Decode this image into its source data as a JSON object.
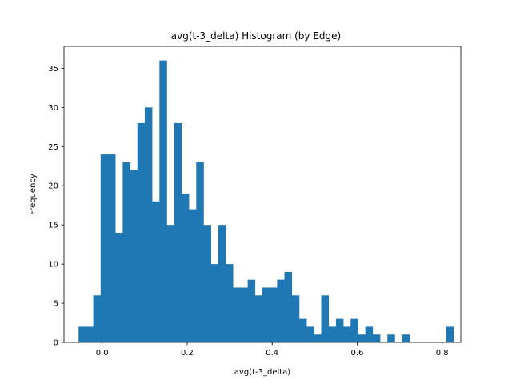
{
  "chart_data": {
    "type": "bar",
    "title": "avg(t-3_delta) Histogram (by Edge)",
    "xlabel": "avg(t-3_delta)",
    "ylabel": "Frequency",
    "xlim": [
      -0.0898,
      0.8438
    ],
    "ylim": [
      0,
      37.8
    ],
    "xticks": [
      "0.0",
      "0.2",
      "0.4",
      "0.6",
      "0.8"
    ],
    "xtick_values": [
      0.0,
      0.2,
      0.4,
      0.6,
      0.8
    ],
    "yticks": [
      "0",
      "5",
      "10",
      "15",
      "20",
      "25",
      "30",
      "35"
    ],
    "ytick_values": [
      0,
      5,
      10,
      15,
      20,
      25,
      30,
      35
    ],
    "bin_start": -0.0555,
    "bin_width": 0.0173,
    "values": [
      2,
      2,
      6,
      24,
      24,
      14,
      23,
      22,
      28,
      30,
      18,
      36,
      15,
      28,
      19,
      17,
      23,
      15,
      10,
      15,
      10,
      7,
      7,
      8,
      6,
      7,
      7,
      8,
      9,
      6,
      3,
      2,
      1,
      6,
      2,
      3,
      2,
      3,
      1,
      2,
      1,
      0,
      1,
      0,
      1,
      0,
      0,
      0,
      0,
      0,
      2
    ],
    "bar_color": "#1f77b4",
    "grid": false,
    "legend": "none"
  }
}
